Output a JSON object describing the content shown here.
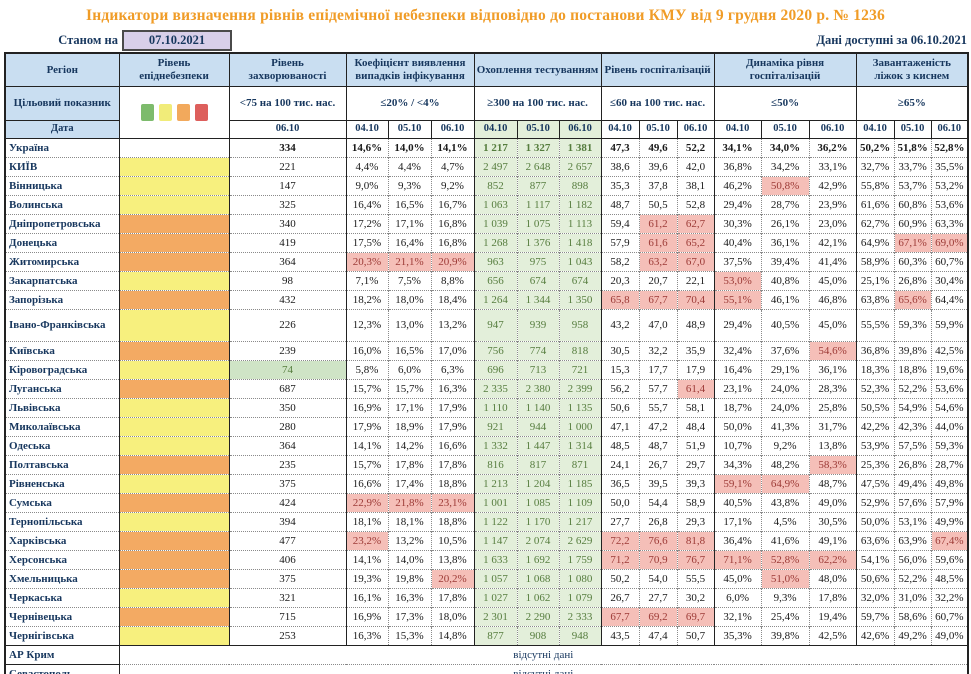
{
  "title": "Індикатори визначення рівнів епідемічної небезпеки відповідно до постанови КМУ від 9 грудня 2020 р. № 1236",
  "as_of_label": "Станом на",
  "as_of_date": "07.10.2021",
  "available_label": "Дані доступні за  06.10.2021",
  "no_data_text": "відсутні дані",
  "legend_colors": [
    "#7dbb6c",
    "#f1ec79",
    "#f2a95c",
    "#dd5f5c"
  ],
  "status_colors": {
    "yellow": "#f7f07e",
    "orange": "#f3aa63",
    "red_cell_bg": "#f5bfb8",
    "green_cell_bg": "#e3efda"
  },
  "columns": {
    "region": "Регіон",
    "target_label": "Цільовий показник",
    "date_label": "Дата",
    "incidence_date": "06.10",
    "dates3": [
      "04.10",
      "05.10",
      "06.10"
    ],
    "groups": [
      {
        "label": "Рівень епіднебезпеки"
      },
      {
        "label": "Рівень захворюваності",
        "target": "<75 на 100 тис. нас."
      },
      {
        "label": "Коефіцієнт виявлення випадків інфікування",
        "target": "≤20% / <4%"
      },
      {
        "label": "Охоплення тестуванням",
        "target": "≥300 на 100 тис. нас."
      },
      {
        "label": "Рівень госпіталізацій",
        "target": "≤60 на 100 тис. нас."
      },
      {
        "label": "Динаміка рівня госпіталізацій",
        "target": "≤50%"
      },
      {
        "label": "Завантаженість ліжок з киснем",
        "target": "≥65%"
      }
    ]
  },
  "rows": [
    {
      "region": "Україна",
      "level": "none",
      "bold": true,
      "inc": "334",
      "det": [
        "14,6%",
        "14,0%",
        "14,1%"
      ],
      "test": [
        "1 217",
        "1 327",
        "1 381"
      ],
      "hosp": [
        "47,3",
        "49,6",
        "52,2"
      ],
      "dyn": [
        "34,1%",
        "34,0%",
        "36,2%"
      ],
      "beds": [
        "50,2%",
        "51,8%",
        "52,8%"
      ]
    },
    {
      "region": "КИЇВ",
      "level": "yellow",
      "inc": "221",
      "det": [
        "4,4%",
        "4,4%",
        "4,7%"
      ],
      "test": [
        "2 497",
        "2 648",
        "2 657"
      ],
      "hosp": [
        "38,6",
        "39,6",
        "42,0"
      ],
      "dyn": [
        "36,8%",
        "34,2%",
        "33,1%"
      ],
      "beds": [
        "32,7%",
        "33,7%",
        "35,5%"
      ]
    },
    {
      "region": "Вінницька",
      "level": "yellow",
      "inc": "147",
      "det": [
        "9,0%",
        "9,3%",
        "9,2%"
      ],
      "test": [
        "852",
        "877",
        "898"
      ],
      "hosp": [
        "35,3",
        "37,8",
        "38,1"
      ],
      "dyn": [
        "46,2%",
        "50,8%",
        "42,9%"
      ],
      "dynR": [
        0,
        1,
        0
      ],
      "beds": [
        "55,8%",
        "53,7%",
        "53,2%"
      ]
    },
    {
      "region": "Волинська",
      "level": "yellow",
      "inc": "325",
      "det": [
        "16,4%",
        "16,5%",
        "16,7%"
      ],
      "test": [
        "1 063",
        "1 117",
        "1 182"
      ],
      "hosp": [
        "48,7",
        "50,5",
        "52,8"
      ],
      "dyn": [
        "29,4%",
        "28,7%",
        "23,9%"
      ],
      "beds": [
        "61,6%",
        "60,8%",
        "53,6%"
      ]
    },
    {
      "region": "Дніпропетровська",
      "level": "orange",
      "inc": "340",
      "det": [
        "17,2%",
        "17,1%",
        "16,8%"
      ],
      "test": [
        "1 039",
        "1 075",
        "1 113"
      ],
      "hosp": [
        "59,4",
        "61,2",
        "62,7"
      ],
      "hospR": [
        0,
        1,
        1
      ],
      "dyn": [
        "30,3%",
        "26,1%",
        "23,0%"
      ],
      "beds": [
        "62,7%",
        "60,9%",
        "63,3%"
      ]
    },
    {
      "region": "Донецька",
      "level": "orange",
      "inc": "419",
      "det": [
        "17,5%",
        "16,4%",
        "16,8%"
      ],
      "test": [
        "1 268",
        "1 376",
        "1 418"
      ],
      "hosp": [
        "57,9",
        "61,6",
        "65,2"
      ],
      "hospR": [
        0,
        1,
        1
      ],
      "dyn": [
        "40,4%",
        "36,1%",
        "42,1%"
      ],
      "beds": [
        "64,9%",
        "67,1%",
        "69,0%"
      ],
      "bedsR": [
        0,
        1,
        1
      ]
    },
    {
      "region": "Житомирська",
      "level": "orange",
      "inc": "364",
      "det": [
        "20,3%",
        "21,1%",
        "20,9%"
      ],
      "detR": [
        1,
        1,
        1
      ],
      "test": [
        "963",
        "975",
        "1 043"
      ],
      "hosp": [
        "58,2",
        "63,2",
        "67,0"
      ],
      "hospR": [
        0,
        1,
        1
      ],
      "dyn": [
        "37,5%",
        "39,4%",
        "41,4%"
      ],
      "beds": [
        "58,9%",
        "60,3%",
        "60,7%"
      ]
    },
    {
      "region": "Закарпатська",
      "level": "yellow",
      "inc": "98",
      "det": [
        "7,1%",
        "7,5%",
        "8,8%"
      ],
      "test": [
        "656",
        "674",
        "674"
      ],
      "hosp": [
        "20,3",
        "20,7",
        "22,1"
      ],
      "dyn": [
        "53,0%",
        "40,8%",
        "45,0%"
      ],
      "dynR": [
        1,
        0,
        0
      ],
      "beds": [
        "25,1%",
        "26,8%",
        "30,4%"
      ]
    },
    {
      "region": "Запорізька",
      "level": "orange",
      "inc": "432",
      "det": [
        "18,2%",
        "18,0%",
        "18,4%"
      ],
      "test": [
        "1 264",
        "1 344",
        "1 350"
      ],
      "hosp": [
        "65,8",
        "67,7",
        "70,4"
      ],
      "hospR": [
        1,
        1,
        1
      ],
      "dyn": [
        "55,1%",
        "46,1%",
        "46,8%"
      ],
      "dynR": [
        1,
        0,
        0
      ],
      "beds": [
        "63,8%",
        "65,6%",
        "64,4%"
      ],
      "bedsR": [
        0,
        1,
        0
      ]
    },
    {
      "region": "Івано-Франківська",
      "level": "yellow",
      "tall": true,
      "inc": "226",
      "det": [
        "12,3%",
        "13,0%",
        "13,2%"
      ],
      "test": [
        "947",
        "939",
        "958"
      ],
      "hosp": [
        "43,2",
        "47,0",
        "48,9"
      ],
      "dyn": [
        "29,4%",
        "40,5%",
        "45,0%"
      ],
      "beds": [
        "55,5%",
        "59,3%",
        "59,9%"
      ]
    },
    {
      "region": "Київська",
      "level": "orange",
      "inc": "239",
      "det": [
        "16,0%",
        "16,5%",
        "17,0%"
      ],
      "test": [
        "756",
        "774",
        "818"
      ],
      "hosp": [
        "30,5",
        "32,2",
        "35,9"
      ],
      "dyn": [
        "32,4%",
        "37,6%",
        "54,6%"
      ],
      "dynR": [
        0,
        0,
        1
      ],
      "beds": [
        "36,8%",
        "39,8%",
        "42,5%"
      ]
    },
    {
      "region": "Кіровоградська",
      "level": "yellow",
      "inc": "74",
      "incG": true,
      "det": [
        "5,8%",
        "6,0%",
        "6,3%"
      ],
      "test": [
        "696",
        "713",
        "721"
      ],
      "hosp": [
        "15,3",
        "17,7",
        "17,9"
      ],
      "dyn": [
        "16,4%",
        "29,1%",
        "36,1%"
      ],
      "beds": [
        "18,3%",
        "18,8%",
        "19,6%"
      ]
    },
    {
      "region": "Луганська",
      "level": "orange",
      "inc": "687",
      "det": [
        "15,7%",
        "15,7%",
        "16,3%"
      ],
      "test": [
        "2 335",
        "2 380",
        "2 399"
      ],
      "hosp": [
        "56,2",
        "57,7",
        "61,4"
      ],
      "hospR": [
        0,
        0,
        1
      ],
      "dyn": [
        "23,1%",
        "24,0%",
        "28,3%"
      ],
      "beds": [
        "52,3%",
        "52,2%",
        "53,6%"
      ]
    },
    {
      "region": "Львівська",
      "level": "yellow",
      "inc": "350",
      "det": [
        "16,9%",
        "17,1%",
        "17,9%"
      ],
      "test": [
        "1 110",
        "1 140",
        "1 135"
      ],
      "hosp": [
        "50,6",
        "55,7",
        "58,1"
      ],
      "dyn": [
        "18,7%",
        "24,0%",
        "25,8%"
      ],
      "beds": [
        "50,5%",
        "54,9%",
        "54,6%"
      ]
    },
    {
      "region": "Миколаївська",
      "level": "yellow",
      "inc": "280",
      "det": [
        "17,9%",
        "18,9%",
        "17,9%"
      ],
      "test": [
        "921",
        "944",
        "1 000"
      ],
      "hosp": [
        "47,1",
        "47,2",
        "48,4"
      ],
      "dyn": [
        "50,0%",
        "41,3%",
        "31,7%"
      ],
      "beds": [
        "42,2%",
        "42,3%",
        "44,0%"
      ]
    },
    {
      "region": "Одеська",
      "level": "yellow",
      "inc": "364",
      "det": [
        "14,1%",
        "14,2%",
        "16,6%"
      ],
      "test": [
        "1 332",
        "1 447",
        "1 314"
      ],
      "hosp": [
        "48,5",
        "48,7",
        "51,9"
      ],
      "dyn": [
        "10,7%",
        "9,2%",
        "13,8%"
      ],
      "beds": [
        "53,9%",
        "57,5%",
        "59,3%"
      ]
    },
    {
      "region": "Полтавська",
      "level": "orange",
      "inc": "235",
      "det": [
        "15,7%",
        "17,8%",
        "17,8%"
      ],
      "test": [
        "816",
        "817",
        "871"
      ],
      "hosp": [
        "24,1",
        "26,7",
        "29,7"
      ],
      "dyn": [
        "34,3%",
        "48,2%",
        "58,3%"
      ],
      "dynR": [
        0,
        0,
        1
      ],
      "beds": [
        "25,3%",
        "26,8%",
        "28,7%"
      ]
    },
    {
      "region": "Рівненська",
      "level": "yellow",
      "inc": "375",
      "det": [
        "16,6%",
        "17,4%",
        "18,8%"
      ],
      "test": [
        "1 213",
        "1 204",
        "1 185"
      ],
      "hosp": [
        "36,5",
        "39,5",
        "39,3"
      ],
      "dyn": [
        "59,1%",
        "64,9%",
        "48,7%"
      ],
      "dynR": [
        1,
        1,
        0
      ],
      "beds": [
        "47,5%",
        "49,4%",
        "49,8%"
      ]
    },
    {
      "region": "Сумська",
      "level": "orange",
      "inc": "424",
      "det": [
        "22,9%",
        "21,8%",
        "23,1%"
      ],
      "detR": [
        1,
        1,
        1
      ],
      "test": [
        "1 001",
        "1 085",
        "1 109"
      ],
      "hosp": [
        "50,0",
        "54,4",
        "58,9"
      ],
      "dyn": [
        "40,5%",
        "43,8%",
        "49,0%"
      ],
      "beds": [
        "52,9%",
        "57,6%",
        "57,9%"
      ]
    },
    {
      "region": "Тернопільська",
      "level": "yellow",
      "inc": "394",
      "det": [
        "18,1%",
        "18,1%",
        "18,8%"
      ],
      "test": [
        "1 122",
        "1 170",
        "1 217"
      ],
      "hosp": [
        "27,7",
        "26,8",
        "29,3"
      ],
      "dyn": [
        "17,1%",
        "4,5%",
        "30,5%"
      ],
      "beds": [
        "50,0%",
        "53,1%",
        "49,9%"
      ]
    },
    {
      "region": "Харківська",
      "level": "orange",
      "inc": "477",
      "det": [
        "23,2%",
        "13,2%",
        "10,5%"
      ],
      "detR": [
        1,
        0,
        0
      ],
      "test": [
        "1 147",
        "2 074",
        "2 629"
      ],
      "hosp": [
        "72,2",
        "76,6",
        "81,8"
      ],
      "hospR": [
        1,
        1,
        1
      ],
      "dyn": [
        "36,4%",
        "41,6%",
        "49,1%"
      ],
      "beds": [
        "63,6%",
        "63,9%",
        "67,4%"
      ],
      "bedsR": [
        0,
        0,
        1
      ]
    },
    {
      "region": "Херсонська",
      "level": "orange",
      "inc": "406",
      "det": [
        "14,1%",
        "14,0%",
        "13,8%"
      ],
      "test": [
        "1 633",
        "1 692",
        "1 759"
      ],
      "hosp": [
        "71,2",
        "70,9",
        "76,7"
      ],
      "hospR": [
        1,
        1,
        1
      ],
      "dyn": [
        "71,1%",
        "52,8%",
        "62,2%"
      ],
      "dynR": [
        1,
        1,
        1
      ],
      "beds": [
        "54,1%",
        "56,0%",
        "59,6%"
      ]
    },
    {
      "region": "Хмельницька",
      "level": "orange",
      "inc": "375",
      "det": [
        "19,3%",
        "19,8%",
        "20,2%"
      ],
      "detR": [
        0,
        0,
        1
      ],
      "test": [
        "1 057",
        "1 068",
        "1 080"
      ],
      "hosp": [
        "50,2",
        "54,0",
        "55,5"
      ],
      "dyn": [
        "45,0%",
        "51,0%",
        "48,0%"
      ],
      "dynR": [
        0,
        1,
        0
      ],
      "beds": [
        "50,6%",
        "52,2%",
        "48,5%"
      ]
    },
    {
      "region": "Черкаська",
      "level": "yellow",
      "inc": "321",
      "det": [
        "16,1%",
        "16,3%",
        "17,8%"
      ],
      "test": [
        "1 027",
        "1 062",
        "1 079"
      ],
      "hosp": [
        "26,7",
        "27,7",
        "30,2"
      ],
      "dyn": [
        "6,0%",
        "9,3%",
        "17,8%"
      ],
      "beds": [
        "32,0%",
        "31,0%",
        "32,2%"
      ]
    },
    {
      "region": "Чернівецька",
      "level": "orange",
      "inc": "715",
      "det": [
        "16,9%",
        "17,3%",
        "18,0%"
      ],
      "test": [
        "2 301",
        "2 290",
        "2 333"
      ],
      "hosp": [
        "67,7",
        "69,2",
        "69,7"
      ],
      "hospR": [
        1,
        1,
        1
      ],
      "dyn": [
        "32,1%",
        "25,4%",
        "19,4%"
      ],
      "beds": [
        "59,7%",
        "58,6%",
        "60,7%"
      ]
    },
    {
      "region": "Чернігівська",
      "level": "yellow",
      "inc": "253",
      "det": [
        "16,3%",
        "15,3%",
        "14,8%"
      ],
      "test": [
        "877",
        "908",
        "948"
      ],
      "hosp": [
        "43,5",
        "47,4",
        "50,7"
      ],
      "dyn": [
        "35,3%",
        "39,8%",
        "42,5%"
      ],
      "beds": [
        "42,6%",
        "49,2%",
        "49,0%"
      ]
    },
    {
      "region": "АР Крим",
      "nodata": true
    },
    {
      "region": "Севастополь",
      "nodata": true
    }
  ]
}
